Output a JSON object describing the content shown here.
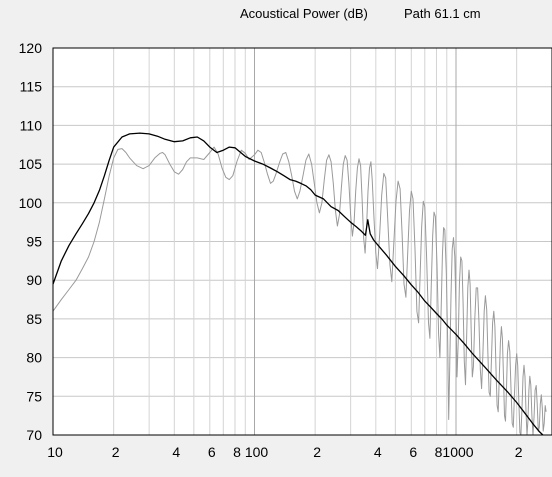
{
  "title": {
    "main": "Acoustical Power (dB)",
    "path": "Path 61.1 cm"
  },
  "chart_data": {
    "type": "line",
    "title": "Acoustical Power (dB)   Path 61.1 cm",
    "xlabel": "",
    "ylabel": "",
    "x_scale": "log",
    "xlim": [
      10,
      3000
    ],
    "ylim": [
      70,
      120
    ],
    "grid": true,
    "y_ticks": [
      120,
      115,
      110,
      105,
      100,
      95,
      90,
      85,
      80,
      75,
      70
    ],
    "x_tick_labels": [
      {
        "x": 10,
        "label": "10"
      },
      {
        "x": 20,
        "label": "2"
      },
      {
        "x": 40,
        "label": "4"
      },
      {
        "x": 60,
        "label": "6"
      },
      {
        "x": 80,
        "label": "8"
      },
      {
        "x": 100,
        "label": "100"
      },
      {
        "x": 200,
        "label": "2"
      },
      {
        "x": 400,
        "label": "4"
      },
      {
        "x": 600,
        "label": "6"
      },
      {
        "x": 800,
        "label": "8"
      },
      {
        "x": 1000,
        "label": "1000"
      },
      {
        "x": 2000,
        "label": "2"
      }
    ],
    "series": [
      {
        "color": "#000000",
        "points": [
          [
            10,
            89.5
          ],
          [
            11,
            92.5
          ],
          [
            12,
            94.5
          ],
          [
            13,
            96
          ],
          [
            14,
            97.3
          ],
          [
            15,
            98.6
          ],
          [
            16,
            100
          ],
          [
            17,
            101.6
          ],
          [
            18,
            103.5
          ],
          [
            19,
            105.5
          ],
          [
            20,
            107.2
          ],
          [
            22,
            108.5
          ],
          [
            24,
            108.9
          ],
          [
            27,
            109
          ],
          [
            30,
            108.9
          ],
          [
            33,
            108.6
          ],
          [
            36,
            108.2
          ],
          [
            40,
            107.9
          ],
          [
            44,
            108
          ],
          [
            48,
            108.4
          ],
          [
            52,
            108.5
          ],
          [
            56,
            108
          ],
          [
            60,
            107.2
          ],
          [
            65,
            106.5
          ],
          [
            70,
            106.8
          ],
          [
            75,
            107.2
          ],
          [
            80,
            107.1
          ],
          [
            90,
            106
          ],
          [
            100,
            105.4
          ],
          [
            110,
            105
          ],
          [
            120,
            104.5
          ],
          [
            130,
            104
          ],
          [
            140,
            103.5
          ],
          [
            150,
            103
          ],
          [
            160,
            102.8
          ],
          [
            170,
            102.5
          ],
          [
            180,
            102.2
          ],
          [
            190,
            101.7
          ],
          [
            200,
            101
          ],
          [
            220,
            100.5
          ],
          [
            240,
            99.5
          ],
          [
            260,
            99
          ],
          [
            280,
            98.2
          ],
          [
            300,
            97.5
          ],
          [
            320,
            96.9
          ],
          [
            340,
            96.3
          ],
          [
            355,
            95.8
          ],
          [
            365,
            97.8
          ],
          [
            375,
            96
          ],
          [
            390,
            95.2
          ],
          [
            420,
            94.2
          ],
          [
            450,
            93.3
          ],
          [
            500,
            91.8
          ],
          [
            550,
            90.6
          ],
          [
            600,
            89.4
          ],
          [
            650,
            88.4
          ],
          [
            700,
            87.3
          ],
          [
            750,
            86.5
          ],
          [
            800,
            85.7
          ],
          [
            850,
            85
          ],
          [
            900,
            84.2
          ],
          [
            1000,
            83
          ],
          [
            1100,
            81.8
          ],
          [
            1200,
            80.6
          ],
          [
            1300,
            79.6
          ],
          [
            1400,
            78.7
          ],
          [
            1500,
            77.8
          ],
          [
            1600,
            77
          ],
          [
            1800,
            75.6
          ],
          [
            2000,
            74.2
          ],
          [
            2200,
            72.8
          ],
          [
            2400,
            71.5
          ],
          [
            2600,
            70.4
          ],
          [
            2700,
            70
          ]
        ]
      },
      {
        "color": "#9a9a9a",
        "points": [
          [
            10,
            86
          ],
          [
            11,
            87.5
          ],
          [
            12,
            88.8
          ],
          [
            13,
            90
          ],
          [
            14,
            91.5
          ],
          [
            15,
            93
          ],
          [
            16,
            95
          ],
          [
            17,
            97.5
          ],
          [
            18,
            100.5
          ],
          [
            19,
            103.5
          ],
          [
            20,
            105.8
          ],
          [
            21,
            106.9
          ],
          [
            22,
            107
          ],
          [
            23,
            106.5
          ],
          [
            24,
            105.8
          ],
          [
            26,
            104.8
          ],
          [
            28,
            104.4
          ],
          [
            30,
            104.8
          ],
          [
            32,
            105.8
          ],
          [
            34,
            106.4
          ],
          [
            35,
            106.5
          ],
          [
            36,
            106.2
          ],
          [
            38,
            105
          ],
          [
            40,
            104
          ],
          [
            42,
            103.7
          ],
          [
            44,
            104.3
          ],
          [
            46,
            105.3
          ],
          [
            48,
            105.8
          ],
          [
            52,
            105.8
          ],
          [
            56,
            105.6
          ],
          [
            60,
            106.5
          ],
          [
            63,
            107.2
          ],
          [
            66,
            106.3
          ],
          [
            69,
            104.5
          ],
          [
            72,
            103.3
          ],
          [
            75,
            103
          ],
          [
            78,
            103.5
          ],
          [
            82,
            105.4
          ],
          [
            86,
            106.8
          ],
          [
            90,
            106.4
          ],
          [
            94,
            105.6
          ],
          [
            100,
            106.2
          ],
          [
            104,
            106.8
          ],
          [
            108,
            106.5
          ],
          [
            112,
            105.2
          ],
          [
            116,
            103.7
          ],
          [
            120,
            102.5
          ],
          [
            124,
            102.8
          ],
          [
            128,
            103.8
          ],
          [
            133,
            105.2
          ],
          [
            138,
            106.3
          ],
          [
            143,
            106.5
          ],
          [
            148,
            105.3
          ],
          [
            153,
            103.5
          ],
          [
            158,
            101.5
          ],
          [
            163,
            100.5
          ],
          [
            168,
            101.5
          ],
          [
            174,
            103.5
          ],
          [
            180,
            105.5
          ],
          [
            186,
            106.3
          ],
          [
            192,
            105
          ],
          [
            198,
            102.5
          ],
          [
            204,
            100
          ],
          [
            210,
            98.7
          ],
          [
            216,
            100
          ],
          [
            222,
            103
          ],
          [
            228,
            105.5
          ],
          [
            234,
            106.2
          ],
          [
            240,
            105.3
          ],
          [
            246,
            102.5
          ],
          [
            252,
            99
          ],
          [
            258,
            97
          ],
          [
            264,
            98.5
          ],
          [
            270,
            102
          ],
          [
            276,
            105
          ],
          [
            282,
            106.1
          ],
          [
            288,
            105.5
          ],
          [
            294,
            102.5
          ],
          [
            300,
            98.5
          ],
          [
            306,
            95.7
          ],
          [
            312,
            97.5
          ],
          [
            318,
            101.5
          ],
          [
            324,
            104.5
          ],
          [
            330,
            105.7
          ],
          [
            336,
            104.8
          ],
          [
            342,
            100.5
          ],
          [
            348,
            95.5
          ],
          [
            354,
            93.5
          ],
          [
            360,
            97
          ],
          [
            366,
            101.5
          ],
          [
            372,
            104.5
          ],
          [
            378,
            105.3
          ],
          [
            384,
            103
          ],
          [
            392,
            98
          ],
          [
            400,
            93.5
          ],
          [
            408,
            91.5
          ],
          [
            418,
            96
          ],
          [
            428,
            101
          ],
          [
            438,
            103.8
          ],
          [
            448,
            103.2
          ],
          [
            458,
            98
          ],
          [
            470,
            92
          ],
          [
            480,
            89.8
          ],
          [
            492,
            95
          ],
          [
            504,
            100.2
          ],
          [
            516,
            102.8
          ],
          [
            528,
            101.8
          ],
          [
            540,
            96
          ],
          [
            552,
            89.5
          ],
          [
            564,
            87.8
          ],
          [
            576,
            93.5
          ],
          [
            588,
            99
          ],
          [
            600,
            101.5
          ],
          [
            612,
            100.5
          ],
          [
            626,
            94
          ],
          [
            640,
            86
          ],
          [
            652,
            84.5
          ],
          [
            664,
            91
          ],
          [
            676,
            97
          ],
          [
            688,
            100.2
          ],
          [
            700,
            99.5
          ],
          [
            715,
            93
          ],
          [
            730,
            84.5
          ],
          [
            742,
            82.5
          ],
          [
            754,
            89.5
          ],
          [
            766,
            95.8
          ],
          [
            778,
            98.8
          ],
          [
            790,
            98.2
          ],
          [
            805,
            92
          ],
          [
            820,
            83
          ],
          [
            832,
            80
          ],
          [
            844,
            86.5
          ],
          [
            856,
            93.2
          ],
          [
            868,
            96.8
          ],
          [
            880,
            96.5
          ],
          [
            895,
            91
          ],
          [
            910,
            82
          ],
          [
            920,
            72
          ],
          [
            930,
            78
          ],
          [
            944,
            88
          ],
          [
            958,
            94
          ],
          [
            972,
            95.5
          ],
          [
            986,
            93
          ],
          [
            1000,
            86
          ],
          [
            1012,
            77.5
          ],
          [
            1026,
            82
          ],
          [
            1040,
            89.5
          ],
          [
            1055,
            93
          ],
          [
            1070,
            92.5
          ],
          [
            1085,
            87
          ],
          [
            1100,
            79.5
          ],
          [
            1115,
            76.5
          ],
          [
            1130,
            83
          ],
          [
            1145,
            89
          ],
          [
            1160,
            91.3
          ],
          [
            1175,
            89.5
          ],
          [
            1190,
            83.5
          ],
          [
            1205,
            77.5
          ],
          [
            1220,
            78.8
          ],
          [
            1240,
            85
          ],
          [
            1260,
            89
          ],
          [
            1280,
            89
          ],
          [
            1300,
            84.5
          ],
          [
            1320,
            78.5
          ],
          [
            1340,
            76
          ],
          [
            1360,
            80.5
          ],
          [
            1380,
            86
          ],
          [
            1400,
            88
          ],
          [
            1420,
            86.2
          ],
          [
            1440,
            80.5
          ],
          [
            1460,
            75.5
          ],
          [
            1480,
            75
          ],
          [
            1500,
            80
          ],
          [
            1520,
            84.5
          ],
          [
            1540,
            86
          ],
          [
            1560,
            84
          ],
          [
            1580,
            78.5
          ],
          [
            1600,
            73.8
          ],
          [
            1620,
            73
          ],
          [
            1640,
            77.5
          ],
          [
            1660,
            82
          ],
          [
            1680,
            84
          ],
          [
            1700,
            82.5
          ],
          [
            1720,
            77.5
          ],
          [
            1740,
            72.5
          ],
          [
            1760,
            71.8
          ],
          [
            1780,
            76
          ],
          [
            1800,
            80.5
          ],
          [
            1825,
            82.2
          ],
          [
            1850,
            80.8
          ],
          [
            1875,
            76
          ],
          [
            1900,
            71.5
          ],
          [
            1925,
            71
          ],
          [
            1950,
            75
          ],
          [
            1975,
            79
          ],
          [
            2000,
            80.5
          ],
          [
            2025,
            79
          ],
          [
            2050,
            74.5
          ],
          [
            2075,
            70.3
          ],
          [
            2100,
            70
          ],
          [
            2125,
            73.5
          ],
          [
            2150,
            77.5
          ],
          [
            2175,
            79
          ],
          [
            2200,
            77.5
          ],
          [
            2225,
            73
          ],
          [
            2250,
            70
          ],
          [
            2275,
            71.8
          ],
          [
            2300,
            75.8
          ],
          [
            2325,
            77.6
          ],
          [
            2350,
            76.5
          ],
          [
            2380,
            72.5
          ],
          [
            2410,
            70
          ],
          [
            2440,
            72.5
          ],
          [
            2470,
            75.8
          ],
          [
            2500,
            76.4
          ],
          [
            2530,
            74
          ],
          [
            2560,
            70.5
          ],
          [
            2590,
            71
          ],
          [
            2620,
            74
          ],
          [
            2650,
            75.2
          ],
          [
            2680,
            73.5
          ],
          [
            2710,
            70.5
          ],
          [
            2740,
            71.5
          ],
          [
            2770,
            73.8
          ],
          [
            2800,
            73
          ]
        ]
      }
    ]
  }
}
